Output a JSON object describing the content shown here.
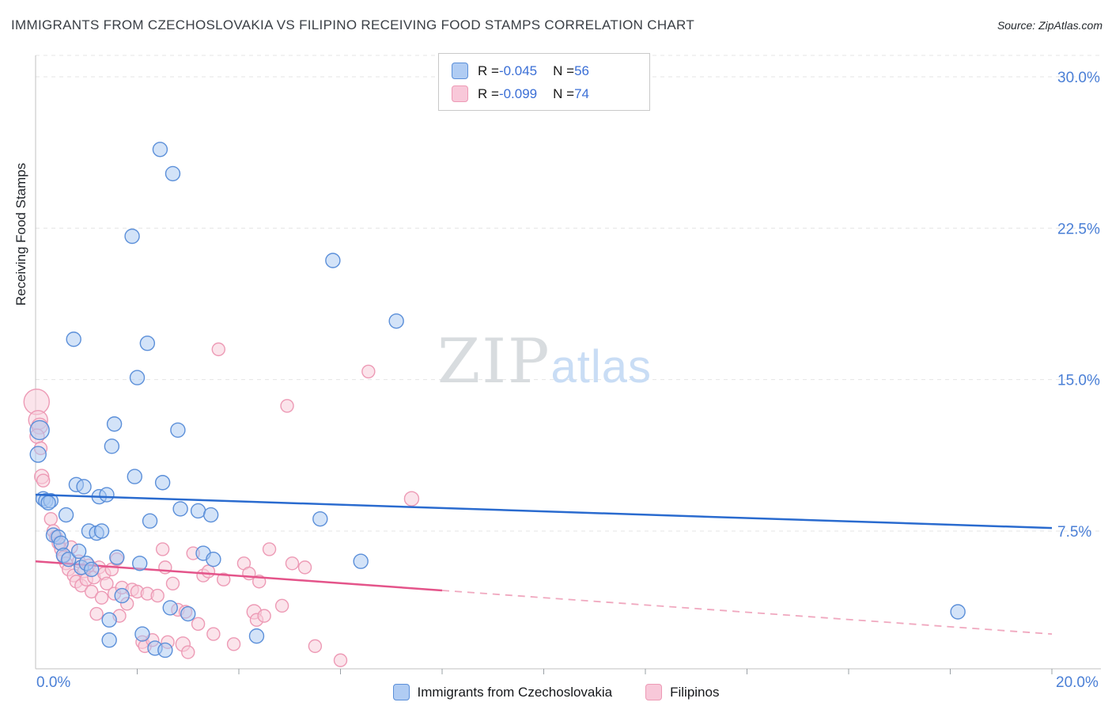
{
  "header": {
    "title": "IMMIGRANTS FROM CZECHOSLOVAKIA VS FILIPINO RECEIVING FOOD STAMPS CORRELATION CHART",
    "source": "Source: ZipAtlas.com"
  },
  "watermark": {
    "zip": "ZIP",
    "atlas": "atlas"
  },
  "chart_data": {
    "type": "scatter",
    "title": "Immigrants from Czechoslovakia vs Filipino Receiving Food Stamps",
    "xlabel": "",
    "ylabel": "Receiving Food Stamps",
    "xlim": [
      0,
      20
    ],
    "ylim": [
      0,
      31
    ],
    "grid": "horizontal-dashed",
    "axis_label_color": "#4a7fd6",
    "x_axis_labels": {
      "left": "0.0%",
      "right": "20.0%"
    },
    "x_tick_step": 2,
    "y_ticks": [
      {
        "value": 30,
        "label": "30.0%"
      },
      {
        "value": 22.5,
        "label": "22.5%"
      },
      {
        "value": 15,
        "label": "15.0%"
      },
      {
        "value": 7.5,
        "label": "7.5%"
      }
    ],
    "legend": {
      "rows": [
        {
          "r_prefix": "R = ",
          "r_value": "-0.045",
          "n_prefix": "N = ",
          "n_value": "56"
        },
        {
          "r_prefix": "R = ",
          "r_value": "-0.099",
          "n_prefix": "N = ",
          "n_value": "74"
        }
      ]
    },
    "series": [
      {
        "name": "Immigrants from Czechoslovakia",
        "r": -0.045,
        "n": 56,
        "fill": "rgba(168,200,242,0.5)",
        "stroke": "#5b8fd9",
        "swatch_fill": "#b0ccf3",
        "trend_color": "#2a6bcf",
        "trend": {
          "solid": [
            [
              0,
              9.3
            ],
            [
              20,
              7.65
            ]
          ]
        },
        "points": [
          [
            0.08,
            12.5,
            12
          ],
          [
            0.05,
            11.3,
            10
          ],
          [
            0.15,
            9.1,
            9
          ],
          [
            0.2,
            9.0,
            9
          ],
          [
            0.3,
            9.0,
            9
          ],
          [
            0.35,
            7.3,
            9
          ],
          [
            0.45,
            7.2,
            9
          ],
          [
            0.5,
            6.9,
            9
          ],
          [
            0.55,
            6.3,
            9
          ],
          [
            0.6,
            8.3,
            9
          ],
          [
            0.65,
            6.1,
            9
          ],
          [
            0.75,
            17.0,
            9
          ],
          [
            0.8,
            9.8,
            9
          ],
          [
            0.85,
            6.5,
            9
          ],
          [
            0.9,
            5.7,
            9
          ],
          [
            0.95,
            9.7,
            9
          ],
          [
            1.0,
            5.9,
            9
          ],
          [
            1.05,
            7.5,
            9
          ],
          [
            1.1,
            5.6,
            9
          ],
          [
            1.2,
            7.4,
            9
          ],
          [
            1.25,
            9.2,
            9
          ],
          [
            1.3,
            7.5,
            9
          ],
          [
            1.4,
            9.3,
            9
          ],
          [
            1.45,
            3.1,
            9
          ],
          [
            1.45,
            2.1,
            9
          ],
          [
            1.5,
            11.7,
            9
          ],
          [
            1.55,
            12.8,
            9
          ],
          [
            1.6,
            6.2,
            9
          ],
          [
            1.7,
            4.3,
            9
          ],
          [
            1.9,
            22.1,
            9
          ],
          [
            1.95,
            10.2,
            9
          ],
          [
            2.0,
            15.1,
            9
          ],
          [
            2.05,
            5.9,
            9
          ],
          [
            2.1,
            2.4,
            9
          ],
          [
            2.2,
            16.8,
            9
          ],
          [
            2.25,
            8.0,
            9
          ],
          [
            2.35,
            1.7,
            9
          ],
          [
            2.45,
            26.4,
            9
          ],
          [
            2.5,
            9.9,
            9
          ],
          [
            2.55,
            1.6,
            9
          ],
          [
            2.65,
            3.7,
            9
          ],
          [
            2.7,
            25.2,
            9
          ],
          [
            2.8,
            12.5,
            9
          ],
          [
            2.85,
            8.6,
            9
          ],
          [
            3.0,
            3.4,
            9
          ],
          [
            3.2,
            8.5,
            9
          ],
          [
            3.3,
            6.4,
            9
          ],
          [
            3.45,
            8.3,
            9
          ],
          [
            3.5,
            6.1,
            9
          ],
          [
            4.35,
            2.3,
            9
          ],
          [
            5.6,
            8.1,
            9
          ],
          [
            5.85,
            20.9,
            9
          ],
          [
            6.4,
            6.0,
            9
          ],
          [
            7.1,
            17.9,
            9
          ],
          [
            18.15,
            3.5,
            9
          ],
          [
            0.25,
            8.9,
            9
          ]
        ]
      },
      {
        "name": "Filipinos",
        "r": -0.099,
        "n": 74,
        "fill": "rgba(248,205,218,0.55)",
        "stroke": "#ed9ab5",
        "swatch_fill": "#f8c8d9",
        "trend_color": "#e4548a",
        "trend_dashed_color": "#f0a8bf",
        "trend": {
          "solid": [
            [
              0,
              6.0
            ],
            [
              8,
              4.56
            ]
          ],
          "dashed": [
            [
              8,
              4.56
            ],
            [
              20,
              2.4
            ]
          ]
        },
        "points": [
          [
            0.02,
            13.9,
            16
          ],
          [
            0.05,
            13.0,
            12
          ],
          [
            0.08,
            12.7,
            10
          ],
          [
            0.03,
            12.2,
            9
          ],
          [
            0.1,
            11.6,
            8
          ],
          [
            0.12,
            10.2,
            9
          ],
          [
            0.15,
            10.0,
            8
          ],
          [
            0.3,
            8.1,
            8
          ],
          [
            0.35,
            7.5,
            8
          ],
          [
            0.4,
            7.2,
            8
          ],
          [
            0.45,
            6.9,
            8
          ],
          [
            0.5,
            6.6,
            8
          ],
          [
            0.55,
            6.2,
            8
          ],
          [
            0.6,
            5.9,
            8
          ],
          [
            0.65,
            5.6,
            8
          ],
          [
            0.7,
            6.7,
            8
          ],
          [
            0.75,
            5.3,
            8
          ],
          [
            0.8,
            5.0,
            8
          ],
          [
            0.85,
            6.0,
            8
          ],
          [
            0.9,
            4.8,
            8
          ],
          [
            0.95,
            5.5,
            8
          ],
          [
            1.0,
            5.1,
            8
          ],
          [
            1.05,
            5.8,
            8
          ],
          [
            1.1,
            4.5,
            8
          ],
          [
            1.15,
            5.2,
            8
          ],
          [
            1.2,
            3.4,
            8
          ],
          [
            1.25,
            5.7,
            8
          ],
          [
            1.3,
            4.2,
            8
          ],
          [
            1.35,
            5.4,
            8
          ],
          [
            1.4,
            4.9,
            8
          ],
          [
            1.5,
            5.6,
            8
          ],
          [
            1.55,
            4.4,
            8
          ],
          [
            1.6,
            6.1,
            8
          ],
          [
            1.65,
            3.3,
            8
          ],
          [
            1.7,
            4.7,
            8
          ],
          [
            1.8,
            3.9,
            8
          ],
          [
            1.9,
            4.6,
            8
          ],
          [
            2.0,
            4.5,
            8
          ],
          [
            2.1,
            2.0,
            8
          ],
          [
            2.15,
            1.8,
            8
          ],
          [
            2.2,
            4.4,
            8
          ],
          [
            2.3,
            2.1,
            8
          ],
          [
            2.4,
            4.3,
            8
          ],
          [
            2.5,
            6.6,
            8
          ],
          [
            2.55,
            5.7,
            8
          ],
          [
            2.6,
            2.0,
            8
          ],
          [
            2.7,
            4.9,
            8
          ],
          [
            2.8,
            3.6,
            8
          ],
          [
            2.9,
            1.9,
            9
          ],
          [
            2.95,
            3.5,
            8
          ],
          [
            3.0,
            1.5,
            8
          ],
          [
            3.1,
            6.4,
            8
          ],
          [
            3.2,
            2.9,
            8
          ],
          [
            3.3,
            5.3,
            8
          ],
          [
            3.4,
            5.5,
            8
          ],
          [
            3.5,
            2.4,
            8
          ],
          [
            3.6,
            16.5,
            8
          ],
          [
            3.7,
            5.1,
            8
          ],
          [
            3.9,
            1.9,
            8
          ],
          [
            4.1,
            5.9,
            8
          ],
          [
            4.2,
            5.4,
            8
          ],
          [
            4.3,
            3.5,
            9
          ],
          [
            4.35,
            3.1,
            8
          ],
          [
            4.4,
            5.0,
            8
          ],
          [
            4.5,
            3.3,
            8
          ],
          [
            4.6,
            6.6,
            8
          ],
          [
            4.85,
            3.8,
            8
          ],
          [
            4.95,
            13.7,
            8
          ],
          [
            5.05,
            5.9,
            8
          ],
          [
            5.3,
            5.7,
            8
          ],
          [
            5.5,
            1.8,
            8
          ],
          [
            6.0,
            1.1,
            8
          ],
          [
            6.55,
            15.4,
            8
          ],
          [
            7.4,
            9.1,
            9
          ]
        ]
      }
    ]
  }
}
